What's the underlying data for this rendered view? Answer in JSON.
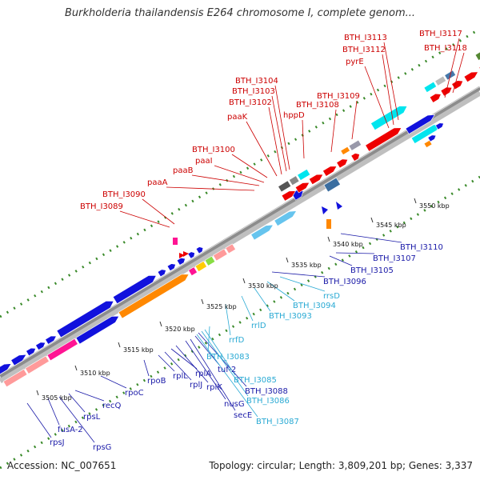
{
  "title": "Burkholderia thailandensis E264 chromosome I, complete genom...",
  "footer": {
    "accession": "Accession: NC_007651",
    "topology": "Topology: circular; Length: 3,809,201 bp; Genes: 3,337"
  },
  "colors": {
    "top_labels": "#cc0000",
    "blue_labels": "#1a1aa8",
    "cyan_labels": "#2aaad4",
    "backbone": "#8c8c8c",
    "dots": "#3a8a2a",
    "red_gene": "#ee0000",
    "blue_gene": "#1111dd",
    "orange_gene": "#ff8800",
    "pink_gene": "#ff1493",
    "salmon_gene": "#ff9a9a",
    "cyan_gene": "#00e5ee",
    "lightblue_gene": "#66c4ee"
  },
  "scale_ticks": [
    "3505 kbp",
    "3510 kbp",
    "3515 kbp",
    "3520 kbp",
    "3525 kbp",
    "3530 kbp",
    "3535 kbp",
    "3540 kbp",
    "3545 kbp",
    "3550 kbp"
  ],
  "top_labels": [
    "BTH_I3089",
    "BTH_I3090",
    "paaA",
    "paaB",
    "paaI",
    "BTH_I3100",
    "paaK",
    "BTH_I3102",
    "BTH_I3103",
    "BTH_I3104",
    "hppD",
    "BTH_I3108",
    "BTH_I3109",
    "pyrE",
    "BTH_I3112",
    "BTH_I3113",
    "BTH_I3117",
    "BTH_I3118"
  ],
  "bottom_labels": [
    "rpsJ",
    "fusA-2",
    "rpsG",
    "rpsL",
    "recQ",
    "rpoC",
    "rpoB",
    "rplL",
    "rplJ",
    "rplA",
    "rplK",
    "nusG",
    "secE",
    "tuf-2",
    "BTH_I3088",
    "BTH_I3086",
    "BTH_I3085",
    "BTH_I3087",
    "BTH_I3083",
    "rrfD",
    "rrlD",
    "BTH_I3093",
    "BTH_I3094",
    "rrsD",
    "BTH_I3096",
    "BTH_I3105",
    "BTH_I3107",
    "BTH_I3110"
  ]
}
